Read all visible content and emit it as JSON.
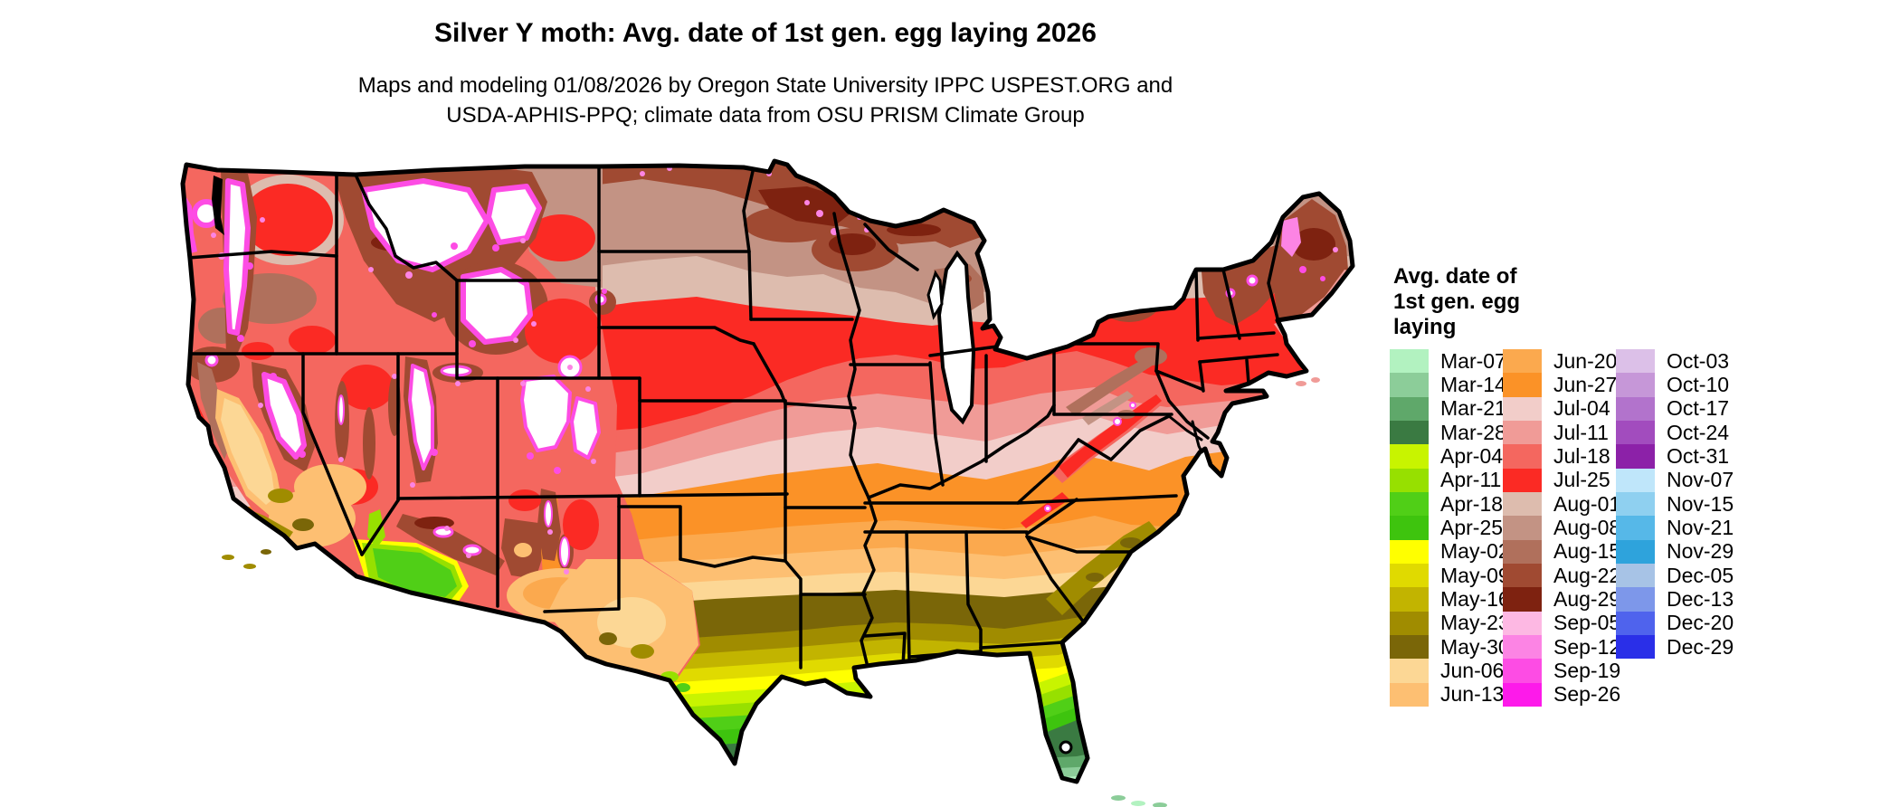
{
  "title": "Silver Y moth: Avg. date of 1st gen. egg laying 2026",
  "subtitle_lines": [
    "Maps and modeling 01/08/2026 by Oregon State University IPPC USPEST.ORG and",
    "USDA-APHIS-PPQ; climate data from OSU PRISM Climate Group"
  ],
  "legend": {
    "title_lines": [
      "Avg. date of",
      "1st gen. egg",
      "laying"
    ],
    "columns": [
      {
        "entries": [
          {
            "label": "Mar-07",
            "color": "#b2f2c0"
          },
          {
            "label": "Mar-14",
            "color": "#8ccd99"
          },
          {
            "label": "Mar-21",
            "color": "#5fa86a"
          },
          {
            "label": "Mar-28",
            "color": "#3a7a42"
          },
          {
            "label": "Apr-04",
            "color": "#c8f400"
          },
          {
            "label": "Apr-11",
            "color": "#97e000"
          },
          {
            "label": "Apr-18",
            "color": "#50cf17"
          },
          {
            "label": "Apr-25",
            "color": "#3ec40e"
          },
          {
            "label": "May-02",
            "color": "#ffff00"
          },
          {
            "label": "May-09",
            "color": "#e0da00"
          },
          {
            "label": "May-16",
            "color": "#c2b400"
          },
          {
            "label": "May-23",
            "color": "#a08c00"
          },
          {
            "label": "May-30",
            "color": "#7a6608"
          },
          {
            "label": "Jun-06",
            "color": "#fcd795"
          },
          {
            "label": "Jun-13",
            "color": "#fdbf72"
          }
        ]
      },
      {
        "entries": [
          {
            "label": "Jun-20",
            "color": "#fba94e"
          },
          {
            "label": "Jun-27",
            "color": "#fb9227"
          },
          {
            "label": "Jul-04",
            "color": "#f2cdc9"
          },
          {
            "label": "Jul-11",
            "color": "#f09b97"
          },
          {
            "label": "Jul-18",
            "color": "#f4675f"
          },
          {
            "label": "Jul-25",
            "color": "#fb2a24"
          },
          {
            "label": "Aug-01",
            "color": "#ddbcae"
          },
          {
            "label": "Aug-08",
            "color": "#c39384"
          },
          {
            "label": "Aug-15",
            "color": "#b0705c"
          },
          {
            "label": "Aug-22",
            "color": "#a04a32"
          },
          {
            "label": "Aug-29",
            "color": "#7e2210"
          },
          {
            "label": "Sep-05",
            "color": "#fdb8e3"
          },
          {
            "label": "Sep-12",
            "color": "#fc84e4"
          },
          {
            "label": "Sep-19",
            "color": "#fd4ce4"
          },
          {
            "label": "Sep-26",
            "color": "#fd1aea"
          }
        ]
      },
      {
        "entries": [
          {
            "label": "Oct-03",
            "color": "#dcc0e8"
          },
          {
            "label": "Oct-10",
            "color": "#c697d8"
          },
          {
            "label": "Oct-17",
            "color": "#b273cc"
          },
          {
            "label": "Oct-24",
            "color": "#a24cbe"
          },
          {
            "label": "Oct-31",
            "color": "#8c21a8"
          },
          {
            "label": "Nov-07",
            "color": "#bfe6fa"
          },
          {
            "label": "Nov-15",
            "color": "#8fd0f0"
          },
          {
            "label": "Nov-21",
            "color": "#56b8e8"
          },
          {
            "label": "Nov-29",
            "color": "#2ea3dc"
          },
          {
            "label": "Dec-05",
            "color": "#a7c3e6"
          },
          {
            "label": "Dec-13",
            "color": "#7d97ea"
          },
          {
            "label": "Dec-20",
            "color": "#4f63ed"
          },
          {
            "label": "Dec-29",
            "color": "#2a2fe8"
          }
        ]
      }
    ]
  },
  "map": {
    "region": "Continental United States",
    "kind": "raster choropleth of average date of first generation egg laying"
  },
  "colors": {
    "mar07": "#b2f2c0",
    "mar14": "#8ccd99",
    "mar21": "#5fa86a",
    "mar28": "#3a7a42",
    "apr04": "#c8f400",
    "apr11": "#97e000",
    "apr18": "#50cf17",
    "apr25": "#3ec40e",
    "may02": "#ffff00",
    "may09": "#e0da00",
    "may16": "#c2b400",
    "may23": "#a08c00",
    "may30": "#7a6608",
    "jun06": "#fcd795",
    "jun13": "#fdbf72",
    "jun20": "#fba94e",
    "jun27": "#fb9227",
    "jul04": "#f2cdc9",
    "jul11": "#f09b97",
    "jul18": "#f4675f",
    "jul25": "#fb2a24",
    "aug01": "#ddbcae",
    "aug08": "#c39384",
    "aug15": "#b0705c",
    "aug22": "#a04a32",
    "aug29": "#7e2210",
    "sep05": "#fdb8e3",
    "sep12": "#fc84e4",
    "sep19": "#fd4ce4",
    "sep26": "#fd1aea",
    "white": "#ffffff",
    "black": "#000000"
  }
}
